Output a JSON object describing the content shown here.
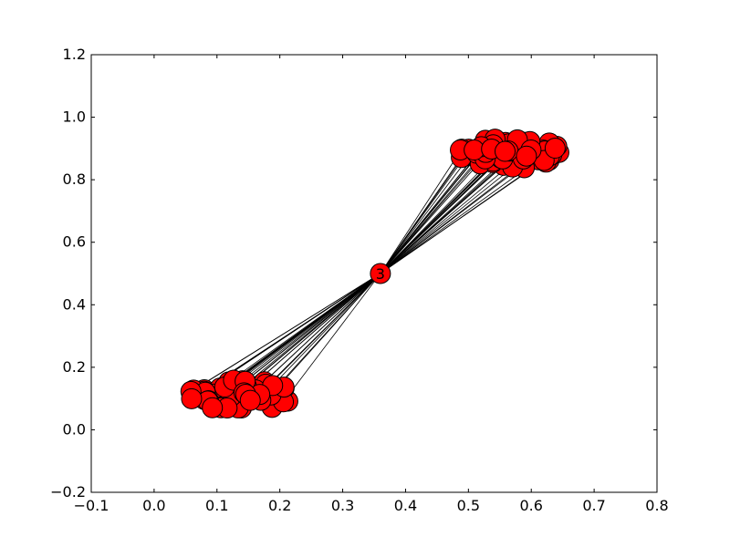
{
  "chart_data": {
    "type": "scatter",
    "title": "",
    "xlabel": "",
    "ylabel": "",
    "xlim": [
      -0.1,
      0.8
    ],
    "ylim": [
      -0.2,
      1.2
    ],
    "x_ticks": [
      -0.1,
      0.0,
      0.1,
      0.2,
      0.3,
      0.4,
      0.5,
      0.6,
      0.7,
      0.8
    ],
    "y_ticks": [
      -0.2,
      0.0,
      0.2,
      0.4,
      0.6,
      0.8,
      1.0,
      1.2
    ],
    "x_tick_labels": [
      "−0.1",
      "0.0",
      "0.1",
      "0.2",
      "0.3",
      "0.4",
      "0.5",
      "0.6",
      "0.7",
      "0.8"
    ],
    "y_tick_labels": [
      "−0.2",
      "0.0",
      "0.2",
      "0.4",
      "0.6",
      "0.8",
      "1.0",
      "1.2"
    ],
    "grid": false,
    "node_color": "#ff0000",
    "edge_color": "#000000",
    "hub_node": {
      "label": "3",
      "x": 0.36,
      "y": 0.5
    },
    "clusters": [
      {
        "center": [
          0.135,
          0.11
        ],
        "spread": [
          0.085,
          0.05
        ],
        "count": 60
      },
      {
        "center": [
          0.57,
          0.885
        ],
        "spread": [
          0.085,
          0.05
        ],
        "count": 60
      }
    ]
  }
}
